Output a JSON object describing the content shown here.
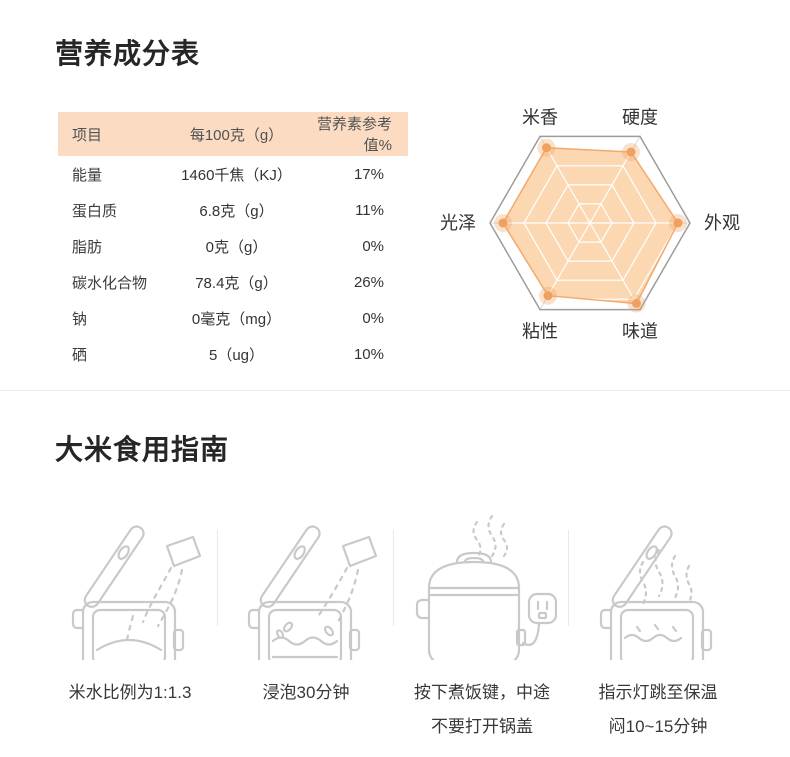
{
  "nutrition_section": {
    "title": "营养成分表",
    "table": {
      "headers": [
        "项目",
        "每100克（g）",
        "营养素参考值%"
      ],
      "rows": [
        [
          "能量",
          "1460千焦（KJ）",
          "17%"
        ],
        [
          "蛋白质",
          "6.8克（g）",
          "11%"
        ],
        [
          "脂肪",
          "0克（g）",
          "0%"
        ],
        [
          "碳水化合物",
          "78.4克（g）",
          "26%"
        ],
        [
          "钠",
          "0毫克（mg）",
          "0%"
        ],
        [
          "硒",
          "5（ug）",
          "10%"
        ]
      ]
    }
  },
  "chart_data": {
    "type": "radar",
    "max": 100,
    "levels": 4,
    "grid_ratio": 0.88,
    "axes": [
      {
        "label": "米香",
        "angle_deg": 120,
        "value": 87
      },
      {
        "label": "硬度",
        "angle_deg": 60,
        "value": 82
      },
      {
        "label": "外观",
        "angle_deg": 0,
        "value": 88
      },
      {
        "label": "味道",
        "angle_deg": -60,
        "value": 93
      },
      {
        "label": "粘性",
        "angle_deg": -120,
        "value": 84
      },
      {
        "label": "光泽",
        "angle_deg": 180,
        "value": 87
      }
    ],
    "colors": {
      "fill": "#fbd7b2",
      "stroke": "#f3aa6e",
      "dot": "#f0a160",
      "halo": "rgba(240,161,96,0.32)",
      "axis_line": "#9c9c9c",
      "grid_line": "#ffffff",
      "spoke_outer": "#dcdcdc",
      "label_color": "#333333"
    }
  },
  "guide_section": {
    "title": "大米食用指南",
    "steps": [
      {
        "icon": "rice-cooker-add-rice-icon",
        "caption_lines": [
          "米水比例为1:1.3"
        ]
      },
      {
        "icon": "rice-cooker-soak-icon",
        "caption_lines": [
          "浸泡30分钟"
        ]
      },
      {
        "icon": "rice-cooker-press-cook-icon",
        "caption_lines": [
          "按下煮饭键，中途",
          "不要打开锅盖"
        ]
      },
      {
        "icon": "rice-cooker-keep-warm-icon",
        "caption_lines": [
          "指示灯跳至保温",
          "闷10~15分钟"
        ]
      }
    ]
  }
}
